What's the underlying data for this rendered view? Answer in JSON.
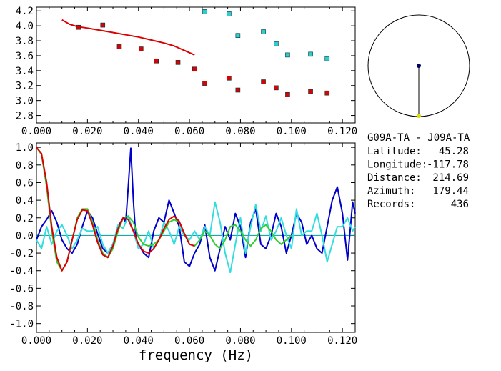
{
  "chart_data": [
    {
      "type": "scatter",
      "panel": "dispersion",
      "xlim": [
        0.0,
        0.125
      ],
      "ylim": [
        2.7,
        4.25
      ],
      "x_ticks": [
        "0.000",
        "0.020",
        "0.040",
        "0.060",
        "0.080",
        "0.100",
        "0.120"
      ],
      "y_ticks": [
        "2.8",
        "3.0",
        "3.2",
        "3.4",
        "3.6",
        "3.8",
        "4.0",
        "4.2"
      ],
      "grid": false,
      "series": [
        {
          "kind": "line",
          "color": "#dd0000",
          "x": [
            0.01,
            0.013,
            0.016,
            0.02,
            0.025,
            0.03,
            0.035,
            0.04,
            0.045,
            0.05,
            0.054,
            0.058,
            0.062
          ],
          "y": [
            4.08,
            4.02,
            3.99,
            3.97,
            3.94,
            3.91,
            3.88,
            3.85,
            3.81,
            3.77,
            3.73,
            3.67,
            3.61
          ]
        },
        {
          "kind": "markers",
          "color": "#dd0000",
          "x": [
            0.0165,
            0.026,
            0.0325,
            0.041,
            0.047,
            0.0555,
            0.062,
            0.066,
            0.0755,
            0.079,
            0.089,
            0.094,
            0.0985,
            0.1075,
            0.114
          ],
          "y": [
            3.98,
            4.01,
            3.72,
            3.69,
            3.53,
            3.51,
            3.42,
            3.23,
            3.3,
            3.14,
            3.25,
            3.17,
            3.08,
            3.12,
            3.1
          ]
        },
        {
          "kind": "markers",
          "color": "#33cccc",
          "x": [
            0.066,
            0.0755,
            0.079,
            0.089,
            0.094,
            0.0985,
            0.1075,
            0.114
          ],
          "y": [
            4.19,
            4.16,
            3.87,
            3.92,
            3.76,
            3.61,
            3.62,
            3.56
          ]
        }
      ]
    },
    {
      "type": "line",
      "panel": "correlation",
      "xlim": [
        0.0,
        0.125
      ],
      "ylim": [
        -1.1,
        1.05
      ],
      "x_ticks": [
        "0.000",
        "0.020",
        "0.040",
        "0.060",
        "0.080",
        "0.100",
        "0.120"
      ],
      "y_ticks": [
        "1.0",
        "0.8",
        "0.6",
        "0.4",
        "0.2",
        "0.0",
        "-0.2",
        "-0.4",
        "-0.6",
        "-0.8",
        "-1.0"
      ],
      "xlabel": "frequency (Hz)",
      "zero_line_color": "#009999",
      "grid": false,
      "series": [
        {
          "color": "#0000cc",
          "x": [
            0.0,
            0.002,
            0.004,
            0.006,
            0.008,
            0.01,
            0.012,
            0.014,
            0.016,
            0.018,
            0.02,
            0.022,
            0.024,
            0.026,
            0.028,
            0.03,
            0.032,
            0.034,
            0.035,
            0.036,
            0.037,
            0.038,
            0.039,
            0.04,
            0.042,
            0.044,
            0.046,
            0.048,
            0.05,
            0.052,
            0.054,
            0.056,
            0.058,
            0.06,
            0.062,
            0.064,
            0.066,
            0.068,
            0.07,
            0.072,
            0.074,
            0.076,
            0.078,
            0.08,
            0.082,
            0.084,
            0.086,
            0.088,
            0.09,
            0.092,
            0.094,
            0.096,
            0.098,
            0.1,
            0.102,
            0.104,
            0.106,
            0.108,
            0.11,
            0.112,
            0.114,
            0.116,
            0.118,
            0.12,
            0.122,
            0.123,
            0.124,
            0.125
          ],
          "y": [
            -0.05,
            0.1,
            0.18,
            0.28,
            0.15,
            -0.05,
            -0.15,
            -0.2,
            -0.1,
            0.1,
            0.28,
            0.2,
            0.02,
            -0.15,
            -0.2,
            -0.1,
            0.1,
            0.2,
            0.15,
            0.55,
            0.99,
            0.4,
            -0.05,
            -0.1,
            -0.2,
            -0.25,
            0.05,
            0.2,
            0.15,
            0.4,
            0.25,
            0.1,
            -0.3,
            -0.35,
            -0.2,
            -0.1,
            0.12,
            -0.25,
            -0.4,
            -0.15,
            0.1,
            -0.05,
            0.25,
            0.1,
            -0.25,
            0.15,
            0.3,
            -0.1,
            -0.15,
            0.0,
            0.25,
            0.1,
            -0.2,
            0.0,
            0.25,
            0.15,
            -0.1,
            0.0,
            -0.15,
            -0.2,
            0.1,
            0.4,
            0.55,
            0.25,
            -0.28,
            0.05,
            0.38,
            0.25
          ]
        },
        {
          "color": "#33dddd",
          "x": [
            0.0,
            0.002,
            0.004,
            0.006,
            0.008,
            0.01,
            0.012,
            0.014,
            0.016,
            0.018,
            0.02,
            0.022,
            0.024,
            0.026,
            0.028,
            0.03,
            0.032,
            0.034,
            0.036,
            0.038,
            0.04,
            0.042,
            0.044,
            0.046,
            0.048,
            0.05,
            0.052,
            0.054,
            0.056,
            0.058,
            0.06,
            0.062,
            0.064,
            0.066,
            0.068,
            0.07,
            0.072,
            0.074,
            0.076,
            0.078,
            0.08,
            0.082,
            0.084,
            0.086,
            0.088,
            0.09,
            0.092,
            0.094,
            0.096,
            0.098,
            0.1,
            0.102,
            0.104,
            0.106,
            0.108,
            0.11,
            0.112,
            0.114,
            0.116,
            0.118,
            0.12,
            0.122,
            0.124,
            0.125
          ],
          "y": [
            -0.05,
            -0.15,
            0.1,
            -0.1,
            0.05,
            0.12,
            0.0,
            -0.15,
            -0.05,
            0.08,
            0.05,
            0.05,
            0.1,
            -0.1,
            -0.2,
            -0.1,
            0.12,
            0.08,
            0.22,
            0.05,
            -0.15,
            -0.1,
            0.05,
            -0.15,
            -0.05,
            0.15,
            0.05,
            -0.1,
            0.1,
            0.0,
            -0.05,
            0.05,
            -0.05,
            0.1,
            0.0,
            0.38,
            0.15,
            -0.2,
            -0.42,
            -0.1,
            0.2,
            -0.2,
            0.1,
            0.35,
            0.05,
            0.22,
            -0.05,
            0.05,
            0.2,
            0.0,
            -0.15,
            0.3,
            0.0,
            0.05,
            0.05,
            0.25,
            0.0,
            -0.3,
            -0.1,
            0.1,
            0.1,
            0.2,
            0.05,
            0.1
          ]
        },
        {
          "color": "#33cc33",
          "x": [
            0.0,
            0.002,
            0.004,
            0.006,
            0.008,
            0.01,
            0.012,
            0.014,
            0.016,
            0.018,
            0.02,
            0.022,
            0.024,
            0.026,
            0.028,
            0.03,
            0.032,
            0.034,
            0.036,
            0.038,
            0.04,
            0.042,
            0.044,
            0.046,
            0.048,
            0.05,
            0.052,
            0.054,
            0.056,
            0.058,
            0.06,
            0.062,
            0.064,
            0.066,
            0.068,
            0.07,
            0.072,
            0.074,
            0.076,
            0.078,
            0.08,
            0.082,
            0.084,
            0.086,
            0.088,
            0.09,
            0.092,
            0.094,
            0.096,
            0.098,
            0.1
          ],
          "y": [
            1.0,
            0.92,
            0.55,
            0.05,
            -0.3,
            -0.4,
            -0.3,
            -0.05,
            0.2,
            0.3,
            0.3,
            0.15,
            -0.05,
            -0.2,
            -0.25,
            -0.15,
            0.05,
            0.2,
            0.22,
            0.15,
            -0.02,
            -0.1,
            -0.12,
            -0.1,
            -0.05,
            0.05,
            0.15,
            0.18,
            0.15,
            0.02,
            -0.1,
            -0.12,
            -0.05,
            0.05,
            0.0,
            -0.1,
            -0.15,
            -0.05,
            0.1,
            0.12,
            0.05,
            -0.05,
            -0.12,
            -0.05,
            0.08,
            0.12,
            0.05,
            -0.05,
            -0.1,
            -0.05,
            0.0
          ]
        },
        {
          "color": "#dd0000",
          "x": [
            0.0,
            0.002,
            0.004,
            0.006,
            0.008,
            0.01,
            0.012,
            0.014,
            0.016,
            0.018,
            0.02,
            0.022,
            0.024,
            0.026,
            0.028,
            0.03,
            0.032,
            0.034,
            0.036,
            0.038,
            0.04,
            0.042,
            0.044,
            0.046,
            0.048,
            0.05,
            0.052,
            0.054,
            0.056,
            0.058,
            0.06,
            0.062
          ],
          "y": [
            1.0,
            0.93,
            0.6,
            0.1,
            -0.25,
            -0.4,
            -0.3,
            -0.05,
            0.18,
            0.29,
            0.28,
            0.12,
            -0.08,
            -0.22,
            -0.25,
            -0.12,
            0.08,
            0.2,
            0.18,
            0.05,
            -0.1,
            -0.18,
            -0.2,
            -0.15,
            -0.05,
            0.08,
            0.18,
            0.22,
            0.16,
            0.02,
            -0.1,
            -0.12
          ]
        }
      ]
    }
  ],
  "map": {
    "station_dot_color": "#000066",
    "event_marker_color": "#dddd00"
  },
  "info": {
    "title": "G09A-TA - J09A-TA",
    "rows": [
      {
        "label": "Latitude:",
        "value": "45.28"
      },
      {
        "label": "Longitude:",
        "value": "-117.78"
      },
      {
        "label": "Distance:",
        "value": "214.69"
      },
      {
        "label": "Azimuth:",
        "value": "179.44"
      },
      {
        "label": "Records:",
        "value": "436"
      }
    ]
  }
}
